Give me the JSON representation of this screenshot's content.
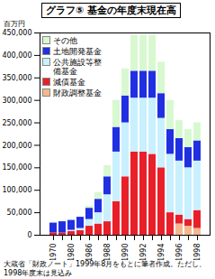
{
  "chart_data": {
    "type": "bar",
    "stacked": true,
    "title": "グラフ⑤ 基金の年度末現在高",
    "ylabel": "百万円",
    "caption": "大蔵省「財政ノート」1999年8月をもとに筆者作成。ただし、1998年度末は見込み",
    "categories": [
      "1970",
      null,
      "1980",
      null,
      "1986",
      null,
      "1988",
      null,
      "1990",
      null,
      "1992",
      null,
      "1994",
      null,
      "1996",
      null,
      "1998"
    ],
    "series": [
      {
        "name": "財政調整基金",
        "color": "#f4b890",
        "values": [
          0,
          0,
          0,
          0,
          0,
          0,
          0,
          0,
          0,
          0,
          0,
          0,
          0,
          0,
          25000,
          20000,
          15000
        ]
      },
      {
        "name": "減債基金",
        "color": "#e8202a",
        "values": [
          5000,
          5000,
          8000,
          10000,
          20000,
          25000,
          30000,
          75000,
          130000,
          185000,
          185000,
          180000,
          150000,
          50000,
          20000,
          15000,
          40000
        ]
      },
      {
        "name": "公共施設等整備基金",
        "color": "#c8f0ff",
        "values": [
          0,
          0,
          3000,
          5000,
          15000,
          25000,
          60000,
          110000,
          120000,
          120000,
          120000,
          125000,
          110000,
          130000,
          120000,
          115000,
          110000
        ]
      },
      {
        "name": "土地開発基金",
        "color": "#2030e0",
        "values": [
          22000,
          25000,
          22000,
          25000,
          25000,
          30000,
          40000,
          55000,
          60000,
          60000,
          60000,
          60000,
          55000,
          55000,
          50000,
          45000,
          45000
        ]
      },
      {
        "name": "その他",
        "color": "#d8f8d0",
        "values": [
          0,
          0,
          0,
          0,
          5000,
          15000,
          25000,
          60000,
          60000,
          80000,
          80000,
          80000,
          70000,
          65000,
          40000,
          40000,
          40000
        ]
      }
    ],
    "ylim": [
      0,
      450000
    ],
    "yticks": [
      0,
      {
        "value": 50000,
        "label": "50,000"
      },
      {
        "value": 100000,
        "label": "100,000"
      },
      {
        "value": 150000,
        "label": "150,000"
      },
      {
        "value": 200000,
        "label": "200,000"
      },
      {
        "value": 250000,
        "label": "250,000"
      },
      {
        "value": 300000,
        "label": "300,000"
      },
      {
        "value": 350000,
        "label": "350,000"
      },
      {
        "value": 400000,
        "label": "400,000"
      },
      {
        "value": 450000,
        "label": "450,000"
      }
    ],
    "grid": false,
    "legend": "top-left"
  }
}
